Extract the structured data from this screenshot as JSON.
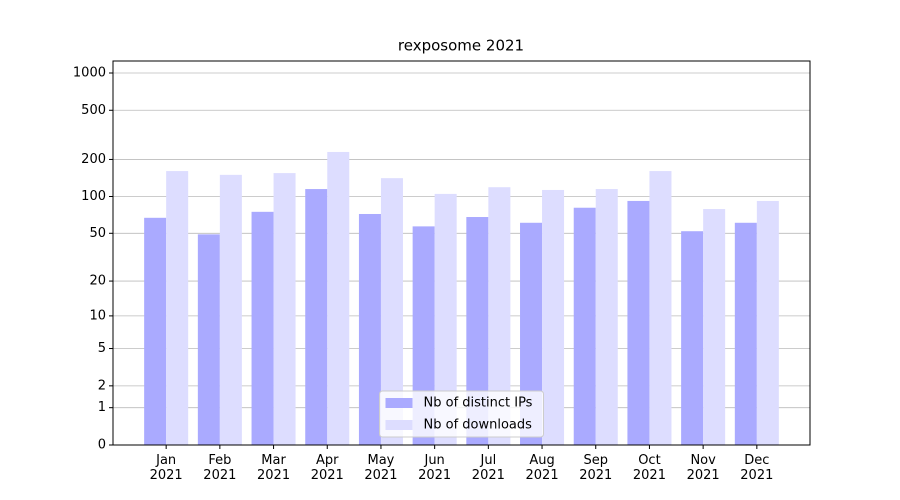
{
  "chart_data": {
    "type": "bar",
    "title": "rexposome 2021",
    "categories": [
      "Jan\n2021",
      "Feb\n2021",
      "Mar\n2021",
      "Apr\n2021",
      "May\n2021",
      "Jun\n2021",
      "Jul\n2021",
      "Aug\n2021",
      "Sep\n2021",
      "Oct\n2021",
      "Nov\n2021",
      "Dec\n2021"
    ],
    "series": [
      {
        "name": "Nb of distinct IPs",
        "color": "#aaaaff",
        "values": [
          67,
          49,
          75,
          115,
          72,
          57,
          68,
          61,
          81,
          92,
          52,
          61
        ]
      },
      {
        "name": "Nb of downloads",
        "color": "#ddddff",
        "values": [
          161,
          150,
          155,
          230,
          141,
          105,
          119,
          113,
          115,
          161,
          79,
          92
        ]
      }
    ],
    "yscale": "log1p",
    "ylim": [
      0,
      1250
    ],
    "yticks": [
      0,
      1,
      2,
      5,
      10,
      20,
      50,
      100,
      200,
      500,
      1000
    ],
    "grid": true,
    "legend": "lower center"
  }
}
